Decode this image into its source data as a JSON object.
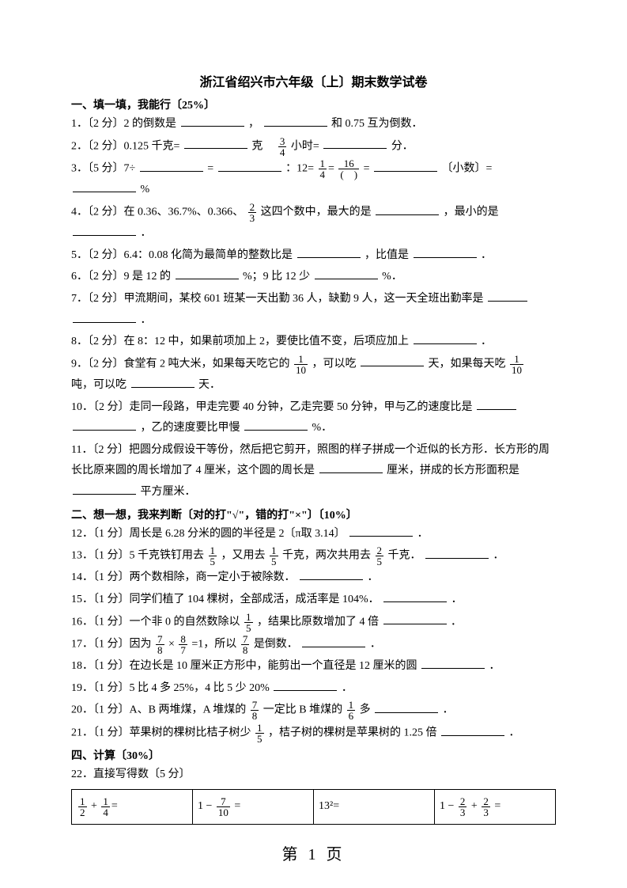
{
  "title": "浙江省绍兴市六年级〔上〕期末数学试卷",
  "section1": "一、填一填，我能行〔25%〕",
  "q1a": "1．〔2 分〕2 的倒数是",
  "q1b": "，",
  "q1c": "和 0.75 互为倒数．",
  "q2a": "2．〔2 分〕0.125 千克=",
  "q2b": "克　",
  "q2c": "小时=",
  "q2d": "分．",
  "q3a": "3．〔5 分〕7÷",
  "q3b": "=",
  "q3c": "：12=",
  "q3d": "=",
  "q3e": "〔小数〕=",
  "q3f": "%",
  "q4a": "4．〔2 分〕在 0.36、36.7%、0.366、",
  "q4b": "这四个数中，最大的是",
  "q4c": "，最小的是",
  "q4d": "．",
  "q5a": "5．〔2 分〕6.4：0.08 化简为最简单的整数比是",
  "q5b": "，比值是",
  "q5c": "．",
  "q6a": "6．〔2 分〕9 是 12 的",
  "q6b": "%；9 比 12 少",
  "q6c": "%．",
  "q7a": "7．〔2 分〕甲流期间，某校 601 班某一天出勤 36 人，缺勤 9 人，这一天全班出勤率是",
  "q7b": "．",
  "q8a": "8．〔2 分〕在 8：12 中，如果前项加上 2，要使比值不变，后项应加上",
  "q8b": "．",
  "q9a": "9．〔2 分〕食堂有 2 吨大米，如果每天吃它的",
  "q9b": "，可以吃",
  "q9c": "天，如果每天吃",
  "q9d": "吨，可以吃",
  "q9e": "天．",
  "q10a": "10．〔2 分〕走同一段路，甲走完要 40 分钟，乙走完要 50 分钟，甲与乙的速度比是",
  "q10b": "，乙的速度要比甲慢",
  "q10c": "%．",
  "q11a": "11．〔2 分〕把圆分成假设干等份，然后把它剪开，照图的样子拼成一个近似的长方形．长方形的周长比原来圆的周长增加了 4 厘米，这个圆的周长是",
  "q11b": "厘米，拼成的长方形面积是",
  "q11c": "平方厘米．",
  "section2": "二、想一想，我来判断〔对的打\"√\"，错的打\"×\"〕〔10%〕",
  "q12a": "12．〔1 分〕周长是 6.28 分米的圆的半径是 2〔π取 3.14〕",
  "q12b": "．",
  "q13a": "13．〔1 分〕5 千克铁钉用去",
  "q13b": "，又用去",
  "q13c": "千克，两次共用去",
  "q13d": "千克．",
  "q13e": "．",
  "q14a": "14．〔1 分〕两个数相除，商一定小于被除数．",
  "q14b": "．",
  "q15a": "15．〔1 分〕同学们植了 104 棵树，全部成活，成活率是 104%．",
  "q15b": "．",
  "q16a": "16．〔1 分〕一个非 0 的自然数除以",
  "q16b": "，结果比原数增加了 4 倍",
  "q16c": "．",
  "q17a": "17．〔1 分〕因为",
  "q17b": "×",
  "q17c": "=1，所以",
  "q17d": "是倒数．",
  "q17e": "．",
  "q18a": "18．〔1 分〕在边长是 10 厘米正方形中，能剪出一个直径是 12 厘米的圆",
  "q18b": "．",
  "q19a": "19．〔1 分〕5 比 4 多 25%，4 比 5 少 20%",
  "q19b": "．",
  "q20a": "20．〔1 分〕A、B 两堆煤，A 堆煤的",
  "q20b": "一定比 B 堆煤的",
  "q20c": "多",
  "q20d": "．",
  "q21a": "21．〔1 分〕苹果树的棵树比桔子树少",
  "q21b": "，桔子树的棵树是苹果树的 1.25 倍",
  "q21c": "．",
  "section4": "四、计算〔30%〕",
  "q22": "22．直接写得数〔5 分〕",
  "calc": {
    "c1a": "+",
    "c2a": "1 −",
    "c2b": "=",
    "c3": "13²=",
    "c4a": "1 −",
    "c4b": "+",
    "c4c": "="
  },
  "frac": {
    "f3_4": {
      "n": "3",
      "d": "4"
    },
    "f1_4": {
      "n": "1",
      "d": "4"
    },
    "f16_p": {
      "n": "16",
      "d": "(　)"
    },
    "f2_3": {
      "n": "2",
      "d": "3"
    },
    "f1_10": {
      "n": "1",
      "d": "10"
    },
    "f1_5": {
      "n": "1",
      "d": "5"
    },
    "f2_5": {
      "n": "2",
      "d": "5"
    },
    "f7_8": {
      "n": "7",
      "d": "8"
    },
    "f8_7": {
      "n": "8",
      "d": "7"
    },
    "f1_6": {
      "n": "1",
      "d": "6"
    },
    "f1_2": {
      "n": "1",
      "d": "2"
    },
    "f1_4b": {
      "n": "1",
      "d": "4"
    },
    "f7_10": {
      "n": "7",
      "d": "10"
    },
    "f2_3b": {
      "n": "2",
      "d": "3"
    }
  },
  "footer": "第 1 页"
}
